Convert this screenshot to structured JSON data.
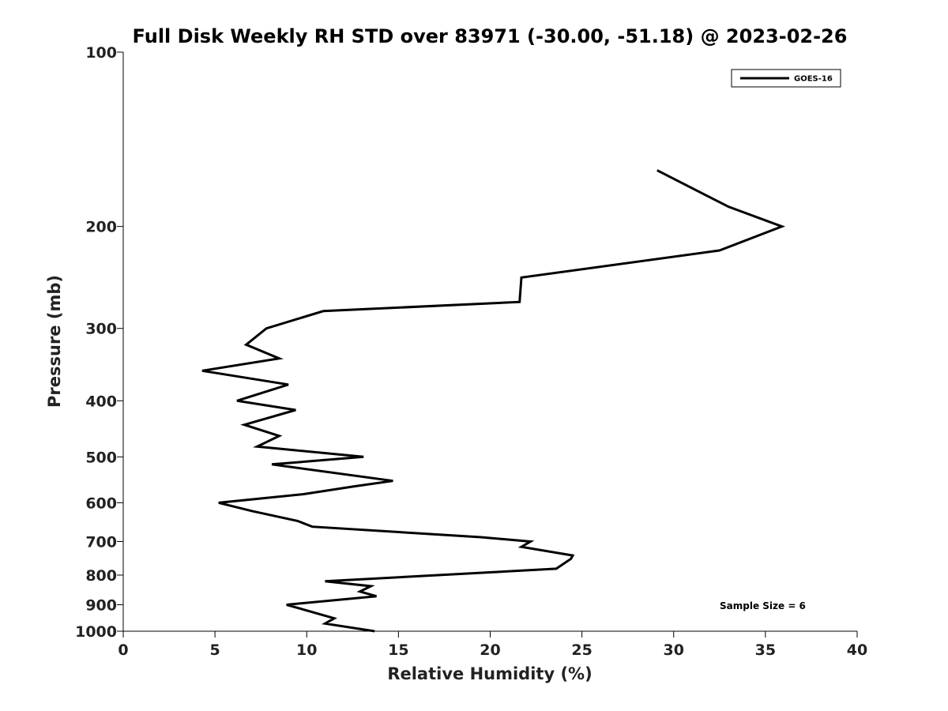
{
  "chart_data": {
    "type": "line",
    "title": "Full Disk Weekly RH STD over 83971 (-30.00, -51.18) @ 2023-02-26",
    "xlabel": "Relative Humidity (%)",
    "ylabel": "Pressure (mb)",
    "xlim": [
      0,
      40
    ],
    "ylim": [
      100,
      1000
    ],
    "y_scale": "log",
    "y_reversed": true,
    "x_ticks": [
      "0",
      "5",
      "10",
      "15",
      "20",
      "25",
      "30",
      "35",
      "40"
    ],
    "y_ticks": [
      "100",
      "200",
      "300",
      "400",
      "500",
      "600",
      "700",
      "800",
      "900",
      "1000"
    ],
    "grid": false,
    "legend_position": "top-right",
    "annotation": "Sample Size = 6",
    "series": [
      {
        "name": "GOES-16",
        "color": "#000000",
        "x": [
          29.1,
          33.0,
          35.9,
          32.5,
          21.7,
          21.6,
          10.9,
          7.8,
          6.7,
          8.5,
          4.3,
          9.0,
          6.2,
          9.4,
          6.6,
          8.5,
          7.3,
          13.1,
          8.1,
          14.7,
          12.6,
          9.8,
          5.2,
          7.0,
          9.5,
          10.3,
          19.5,
          22.2,
          21.7,
          24.5,
          24.4,
          23.6,
          11.0,
          13.5,
          12.9,
          13.8,
          8.9,
          11.5,
          11.0,
          13.7
        ],
        "y": [
          160,
          185,
          200,
          220,
          245,
          270,
          280,
          300,
          320,
          338,
          355,
          375,
          400,
          415,
          440,
          460,
          480,
          500,
          515,
          550,
          562,
          580,
          600,
          620,
          645,
          660,
          688,
          700,
          715,
          740,
          750,
          780,
          820,
          836,
          854,
          870,
          900,
          950,
          970,
          1000
        ]
      }
    ]
  }
}
